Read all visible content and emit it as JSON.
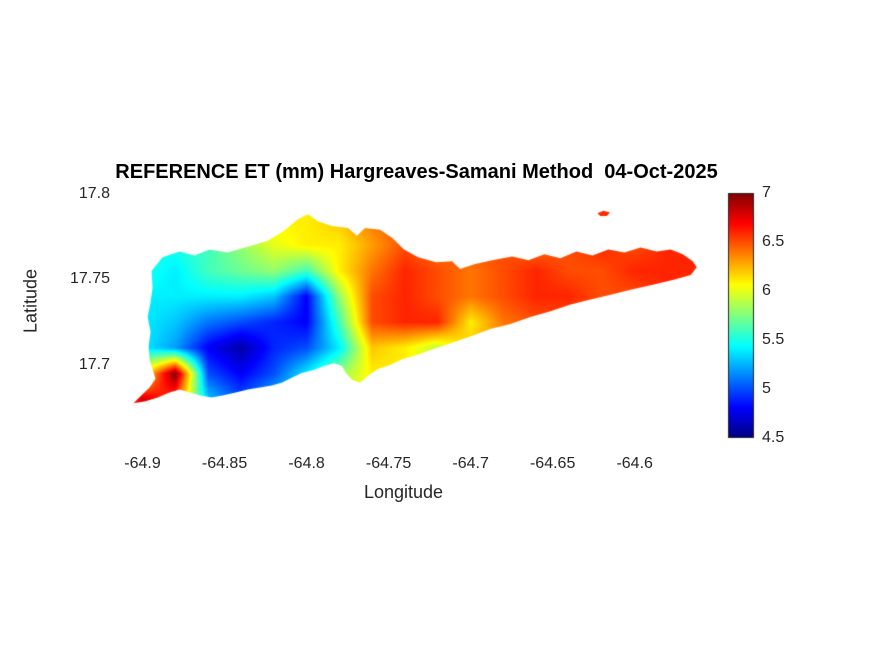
{
  "chart_data": {
    "type": "heatmap",
    "title": "REFERENCE ET (mm) Hargreaves-Samani Method  04-Oct-2025",
    "xlabel": "Longitude",
    "ylabel": "Latitude",
    "units": "mm",
    "xlim": [
      -64.918,
      -64.548
    ],
    "ylim": [
      17.651,
      17.801
    ],
    "x_ticks": {
      "values": [
        -64.9,
        -64.85,
        -64.8,
        -64.75,
        -64.7,
        -64.65,
        -64.6
      ],
      "labels": [
        "-64.9",
        "-64.85",
        "-64.8",
        "-64.75",
        "-64.7",
        "-64.65",
        "-64.6"
      ]
    },
    "y_ticks": {
      "values": [
        17.7,
        17.75,
        17.8
      ],
      "labels": [
        "17.7",
        "17.75",
        "17.8"
      ]
    },
    "colormap": "jet",
    "clim": [
      4.5,
      7
    ],
    "colorbar_position": "right",
    "colorbar_ticks": {
      "values": [
        4.5,
        5,
        5.5,
        6,
        6.5,
        7
      ],
      "labels": [
        "4.5",
        "5",
        "5.5",
        "6",
        "6.5",
        "7"
      ]
    },
    "grid": {
      "lon_start": -64.92,
      "lon_step": 0.02,
      "n_lon": 19,
      "lat_start": 17.8,
      "lat_step": -0.015,
      "n_lat": 11,
      "values_mm": [
        [
          5.6,
          5.6,
          5.6,
          5.8,
          6.0,
          6.1,
          6.1,
          6.2,
          6.4,
          6.5,
          6.5,
          6.5,
          6.4,
          6.5,
          6.6,
          6.5,
          6.6,
          6.6,
          6.6
        ],
        [
          5.6,
          5.6,
          5.6,
          5.8,
          6.0,
          6.1,
          6.1,
          6.2,
          6.4,
          6.5,
          6.5,
          6.4,
          6.4,
          6.5,
          6.6,
          6.6,
          6.6,
          6.7,
          6.6
        ],
        [
          5.5,
          5.5,
          5.5,
          5.6,
          5.8,
          6.0,
          6.1,
          6.1,
          6.3,
          6.5,
          6.4,
          6.5,
          6.5,
          6.4,
          6.5,
          6.6,
          6.5,
          6.6,
          6.6
        ],
        [
          5.4,
          5.5,
          5.4,
          5.6,
          5.7,
          5.8,
          5.6,
          6.1,
          6.4,
          6.6,
          6.5,
          6.4,
          6.5,
          6.6,
          6.5,
          6.5,
          6.6,
          6.6,
          6.6
        ],
        [
          5.4,
          5.4,
          5.4,
          5.4,
          5.4,
          5.3,
          4.8,
          5.8,
          6.5,
          6.6,
          6.5,
          6.4,
          6.5,
          6.6,
          6.6,
          6.5,
          6.5,
          6.6,
          6.5
        ],
        [
          5.4,
          5.4,
          5.3,
          5.1,
          5.0,
          4.9,
          4.8,
          5.6,
          6.5,
          6.6,
          6.6,
          6.1,
          6.4,
          6.5,
          6.5,
          6.4,
          6.5,
          6.5,
          6.5
        ],
        [
          5.5,
          5.4,
          5.2,
          4.8,
          4.6,
          4.9,
          5.0,
          5.4,
          6.2,
          6.1,
          5.9,
          6.2,
          6.3,
          6.3,
          6.3,
          6.3,
          6.3,
          6.3,
          6.3
        ],
        [
          5.7,
          6.0,
          7.0,
          5.0,
          4.8,
          5.0,
          5.4,
          5.8,
          6.1,
          6.1,
          6.0,
          6.2,
          6.3,
          6.3,
          6.3,
          6.3,
          6.3,
          6.3,
          6.3
        ],
        [
          6.2,
          6.8,
          6.5,
          5.3,
          5.0,
          5.3,
          5.5,
          5.9,
          6.1,
          6.1,
          6.1,
          6.2,
          6.2,
          6.2,
          6.2,
          6.2,
          6.2,
          6.2,
          6.2
        ],
        [
          6.0,
          6.4,
          6.2,
          5.4,
          5.2,
          5.4,
          5.6,
          5.9,
          6.1,
          6.1,
          6.1,
          6.1,
          6.1,
          6.2,
          6.2,
          6.2,
          6.2,
          6.2,
          6.2
        ],
        [
          5.9,
          6.2,
          6.0,
          5.5,
          5.3,
          5.5,
          5.7,
          5.9,
          6.1,
          6.1,
          6.1,
          6.1,
          6.1,
          6.1,
          6.1,
          6.1,
          6.1,
          6.1,
          6.1
        ]
      ]
    },
    "regions": {
      "main_island_outline_lonlat": [
        [
          -64.8945,
          17.7549
        ],
        [
          -64.8878,
          17.7629
        ],
        [
          -64.8774,
          17.7663
        ],
        [
          -64.8682,
          17.764
        ],
        [
          -64.8591,
          17.7674
        ],
        [
          -64.8481,
          17.7657
        ],
        [
          -64.8359,
          17.7691
        ],
        [
          -64.8237,
          17.7726
        ],
        [
          -64.8139,
          17.7783
        ],
        [
          -64.8053,
          17.7851
        ],
        [
          -64.7992,
          17.788
        ],
        [
          -64.7931,
          17.784
        ],
        [
          -64.7846,
          17.7811
        ],
        [
          -64.7748,
          17.78
        ],
        [
          -64.7693,
          17.7754
        ],
        [
          -64.7644,
          17.78
        ],
        [
          -64.7552,
          17.7789
        ],
        [
          -64.7479,
          17.7743
        ],
        [
          -64.7406,
          17.7674
        ],
        [
          -64.732,
          17.7629
        ],
        [
          -64.721,
          17.76
        ],
        [
          -64.7113,
          17.7606
        ],
        [
          -64.7064,
          17.756
        ],
        [
          -64.6978,
          17.7589
        ],
        [
          -64.6868,
          17.7611
        ],
        [
          -64.6746,
          17.7634
        ],
        [
          -64.6648,
          17.7611
        ],
        [
          -64.6551,
          17.7646
        ],
        [
          -64.6453,
          17.7623
        ],
        [
          -64.6355,
          17.7663
        ],
        [
          -64.6257,
          17.764
        ],
        [
          -64.616,
          17.7674
        ],
        [
          -64.6062,
          17.7657
        ],
        [
          -64.5964,
          17.7686
        ],
        [
          -64.5866,
          17.7663
        ],
        [
          -64.5781,
          17.7674
        ],
        [
          -64.5707,
          17.7646
        ],
        [
          -64.5646,
          17.7606
        ],
        [
          -64.5622,
          17.7571
        ],
        [
          -64.5658,
          17.7526
        ],
        [
          -64.5768,
          17.7497
        ],
        [
          -64.589,
          17.7469
        ],
        [
          -64.6025,
          17.744
        ],
        [
          -64.6147,
          17.7411
        ],
        [
          -64.6269,
          17.7383
        ],
        [
          -64.6391,
          17.7354
        ],
        [
          -64.6513,
          17.7314
        ],
        [
          -64.6636,
          17.728
        ],
        [
          -64.6758,
          17.724
        ],
        [
          -64.688,
          17.7211
        ],
        [
          -64.7002,
          17.7166
        ],
        [
          -64.7125,
          17.7126
        ],
        [
          -64.7235,
          17.7091
        ],
        [
          -64.7332,
          17.7057
        ],
        [
          -64.7418,
          17.7034
        ],
        [
          -64.7491,
          17.7
        ],
        [
          -64.7565,
          17.6977
        ],
        [
          -64.7626,
          17.6937
        ],
        [
          -64.7674,
          17.6897
        ],
        [
          -64.7723,
          17.6914
        ],
        [
          -64.776,
          17.6954
        ],
        [
          -64.7784,
          17.6994
        ],
        [
          -64.7833,
          17.7011
        ],
        [
          -64.7894,
          17.6994
        ],
        [
          -64.7955,
          17.6971
        ],
        [
          -64.8029,
          17.6954
        ],
        [
          -64.809,
          17.6926
        ],
        [
          -64.8151,
          17.6897
        ],
        [
          -64.8212,
          17.688
        ],
        [
          -64.8285,
          17.6869
        ],
        [
          -64.8359,
          17.6857
        ],
        [
          -64.8432,
          17.684
        ],
        [
          -64.8505,
          17.6823
        ],
        [
          -64.8579,
          17.6811
        ],
        [
          -64.8652,
          17.6823
        ],
        [
          -64.8713,
          17.684
        ],
        [
          -64.8774,
          17.6857
        ],
        [
          -64.8835,
          17.684
        ],
        [
          -64.8908,
          17.6811
        ],
        [
          -64.8982,
          17.6789
        ],
        [
          -64.9055,
          17.6777
        ],
        [
          -64.9006,
          17.6823
        ],
        [
          -64.8957,
          17.6869
        ],
        [
          -64.8921,
          17.692
        ],
        [
          -64.8939,
          17.6977
        ],
        [
          -64.8957,
          17.7034
        ],
        [
          -64.8963,
          17.7109
        ],
        [
          -64.8951,
          17.7194
        ],
        [
          -64.8969,
          17.728
        ],
        [
          -64.8951,
          17.7366
        ],
        [
          -64.8939,
          17.7451
        ]
      ],
      "small_island_outline_lonlat": [
        [
          -64.6227,
          17.7886
        ],
        [
          -64.619,
          17.79
        ],
        [
          -64.615,
          17.789
        ],
        [
          -64.617,
          17.787
        ],
        [
          -64.621,
          17.787
        ]
      ]
    },
    "text_colors": {
      "title": "#000000",
      "labels": "#262626"
    }
  }
}
